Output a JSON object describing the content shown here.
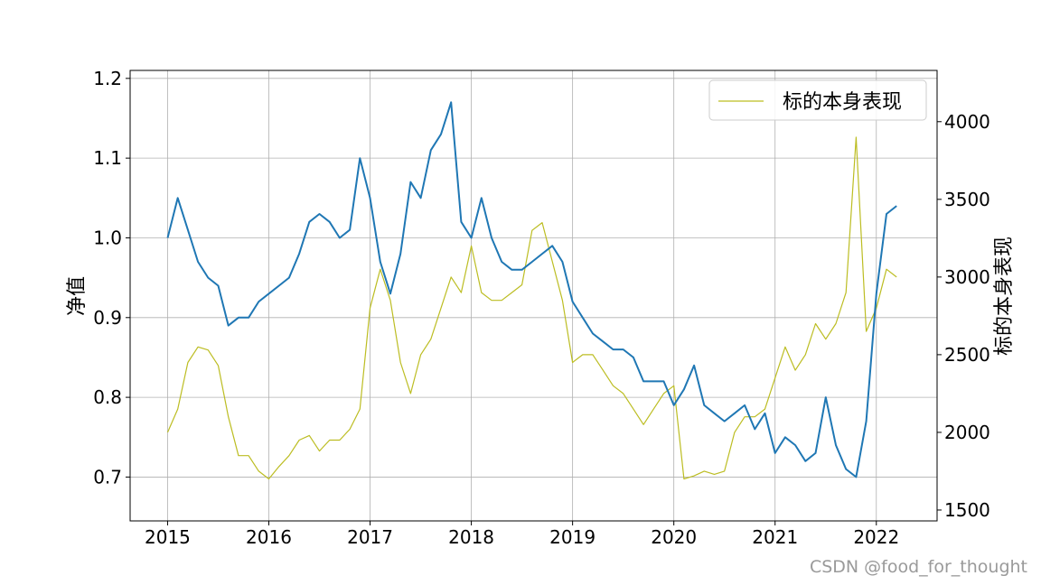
{
  "chart_data": {
    "type": "line",
    "x": [
      2015.0,
      2015.1,
      2015.2,
      2015.3,
      2015.4,
      2015.5,
      2015.6,
      2015.7,
      2015.8,
      2015.9,
      2016.0,
      2016.1,
      2016.2,
      2016.3,
      2016.4,
      2016.5,
      2016.6,
      2016.7,
      2016.8,
      2016.9,
      2017.0,
      2017.1,
      2017.2,
      2017.3,
      2017.4,
      2017.5,
      2017.6,
      2017.7,
      2017.8,
      2017.9,
      2018.0,
      2018.1,
      2018.2,
      2018.3,
      2018.4,
      2018.5,
      2018.6,
      2018.7,
      2018.8,
      2018.9,
      2019.0,
      2019.1,
      2019.2,
      2019.3,
      2019.4,
      2019.5,
      2019.6,
      2019.7,
      2019.8,
      2019.9,
      2020.0,
      2020.1,
      2020.2,
      2020.3,
      2020.4,
      2020.5,
      2020.6,
      2020.7,
      2020.8,
      2020.9,
      2021.0,
      2021.1,
      2021.2,
      2021.3,
      2021.4,
      2021.5,
      2021.6,
      2021.7,
      2021.8,
      2021.9,
      2022.0,
      2022.1,
      2022.2
    ],
    "series": [
      {
        "axis": "left",
        "color": "#1f77b4",
        "values": [
          1.0,
          1.05,
          1.01,
          0.97,
          0.95,
          0.94,
          0.89,
          0.9,
          0.9,
          0.92,
          0.93,
          0.94,
          0.95,
          0.98,
          1.02,
          1.03,
          1.02,
          1.0,
          1.01,
          1.1,
          1.05,
          0.97,
          0.93,
          0.98,
          1.07,
          1.05,
          1.11,
          1.13,
          1.17,
          1.02,
          1.0,
          1.05,
          1.0,
          0.97,
          0.96,
          0.96,
          0.97,
          0.98,
          0.99,
          0.97,
          0.92,
          0.9,
          0.88,
          0.87,
          0.86,
          0.86,
          0.85,
          0.82,
          0.82,
          0.82,
          0.79,
          0.81,
          0.84,
          0.79,
          0.78,
          0.77,
          0.78,
          0.79,
          0.76,
          0.78,
          0.73,
          0.75,
          0.74,
          0.72,
          0.73,
          0.8,
          0.74,
          0.71,
          0.7,
          0.77,
          0.93,
          1.03,
          1.04
        ]
      },
      {
        "name": "标的本身表现",
        "axis": "right",
        "color": "#bcbd22",
        "values": [
          2000,
          2150,
          2450,
          2550,
          2530,
          2430,
          2100,
          1850,
          1850,
          1750,
          1700,
          1780,
          1850,
          1950,
          1980,
          1880,
          1950,
          1950,
          2020,
          2150,
          2800,
          3050,
          2850,
          2450,
          2250,
          2500,
          2600,
          2800,
          3000,
          2900,
          3200,
          2900,
          2850,
          2850,
          2900,
          2950,
          3300,
          3350,
          3100,
          2850,
          2450,
          2500,
          2500,
          2400,
          2300,
          2250,
          2150,
          2050,
          2150,
          2250,
          2300,
          1700,
          1720,
          1750,
          1730,
          1750,
          2000,
          2100,
          2100,
          2150,
          2350,
          2550,
          2400,
          2500,
          2700,
          2600,
          2700,
          2900,
          3900,
          2650,
          2800,
          3050,
          3000
        ]
      }
    ],
    "xticks": [
      "2015",
      "2016",
      "2017",
      "2018",
      "2019",
      "2020",
      "2021",
      "2022"
    ],
    "yticks_left": [
      "0.7",
      "0.8",
      "0.9",
      "1.0",
      "1.1",
      "1.2"
    ],
    "yticks_right": [
      "1500",
      "2000",
      "2500",
      "3000",
      "3500",
      "4000"
    ],
    "xlim": [
      2014.63,
      2022.6
    ],
    "ylim_left": [
      0.645,
      1.21
    ],
    "ylim_right": [
      1430,
      4330
    ],
    "ylabel_left": "净值",
    "ylabel_right": "标的本身表现",
    "legend_position": "upper right",
    "grid": true
  },
  "watermark": "CSDN @food_for_thought"
}
